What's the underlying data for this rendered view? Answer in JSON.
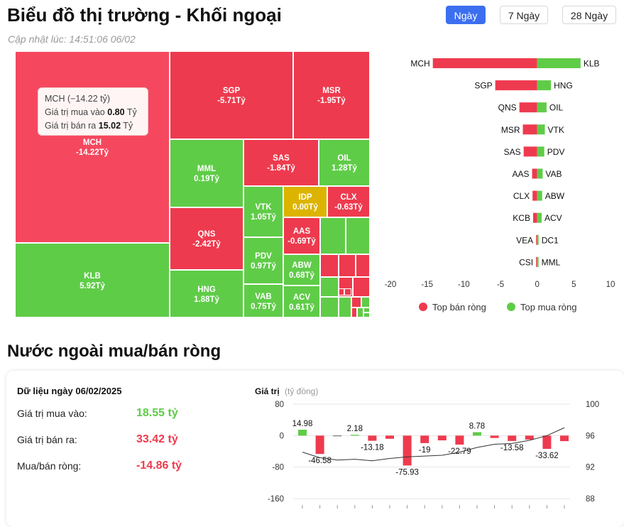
{
  "header": {
    "title": "Biểu đồ thị trường - Khối ngoại",
    "updated": "Cập nhật lúc: 14:51:06 06/02"
  },
  "tabs": [
    {
      "label": "Ngày",
      "active": true
    },
    {
      "label": "7 Ngày",
      "active": false
    },
    {
      "label": "28 Ngày",
      "active": false
    }
  ],
  "colors": {
    "sell": "#ee3a4e",
    "buy": "#5fcc48",
    "neutral": "#dcb400",
    "sell_highlight": "#f5485f",
    "accent": "#3c6ff0"
  },
  "tooltip": {
    "title": "MCH (−14.22 tỷ)",
    "buy_label": "Giá trị mua vào",
    "buy_value": "0.80",
    "sell_label": "Giá trị bán ra",
    "sell_value": "15.02",
    "unit": "Tỷ"
  },
  "chart_data": [
    {
      "type": "heatmap",
      "cells": [
        {
          "ticker": "MCH",
          "value_label": "-14.22Tỷ",
          "value": -14.22
        },
        {
          "ticker": "KLB",
          "value_label": "5.92Tỷ",
          "value": 5.92
        },
        {
          "ticker": "SGP",
          "value_label": "-5.71Tỷ",
          "value": -5.71
        },
        {
          "ticker": "MSR",
          "value_label": "-1.95Tỷ",
          "value": -1.95
        },
        {
          "ticker": "MML",
          "value_label": "0.19Tỷ",
          "value": 0.19
        },
        {
          "ticker": "SAS",
          "value_label": "-1.84Tỷ",
          "value": -1.84
        },
        {
          "ticker": "OIL",
          "value_label": "1.28Tỷ",
          "value": 1.28
        },
        {
          "ticker": "QNS",
          "value_label": "-2.42Tỷ",
          "value": -2.42
        },
        {
          "ticker": "VTK",
          "value_label": "1.05Tỷ",
          "value": 1.05
        },
        {
          "ticker": "IDP",
          "value_label": "0.00Tỷ",
          "value": 0.0
        },
        {
          "ticker": "CLX",
          "value_label": "-0.63Tỷ",
          "value": -0.63
        },
        {
          "ticker": "AAS",
          "value_label": "-0.69Tỷ",
          "value": -0.69
        },
        {
          "ticker": "PDV",
          "value_label": "0.97Tỷ",
          "value": 0.97
        },
        {
          "ticker": "ABW",
          "value_label": "0.68Tỷ",
          "value": 0.68
        },
        {
          "ticker": "HNG",
          "value_label": "1.88Tỷ",
          "value": 1.88
        },
        {
          "ticker": "VAB",
          "value_label": "0.75Tỷ",
          "value": 0.75
        },
        {
          "ticker": "ACV",
          "value_label": "0.61Tỷ",
          "value": 0.61
        }
      ],
      "small_cells": [
        "buy",
        "buy",
        "sell",
        "sell",
        "sell",
        "buy",
        "sell",
        "sell",
        "buy",
        "buy",
        "sell",
        "buy",
        "sell",
        "buy",
        "buy",
        "buy",
        "sell",
        "sell"
      ]
    },
    {
      "type": "bar",
      "orientation": "horizontal",
      "sell_tickers": [
        "MCH",
        "SGP",
        "QNS",
        "MSR",
        "SAS",
        "AAS",
        "CLX",
        "KCB",
        "VEA",
        "CSI"
      ],
      "sell_values": [
        -14.22,
        -5.71,
        -2.42,
        -1.95,
        -1.84,
        -0.69,
        -0.63,
        -0.55,
        -0.12,
        -0.08
      ],
      "buy_tickers": [
        "KLB",
        "HNG",
        "OIL",
        "VTK",
        "PDV",
        "VAB",
        "ABW",
        "ACV",
        "DC1",
        "MML"
      ],
      "buy_values": [
        5.92,
        1.88,
        1.28,
        1.05,
        0.97,
        0.75,
        0.68,
        0.61,
        0.2,
        0.19
      ],
      "xlim": [
        -20,
        10
      ],
      "ticks": [
        -20,
        -15,
        -10,
        -5,
        0,
        5,
        10
      ],
      "legend": [
        {
          "label": "Top bán ròng",
          "color": "#ee3a4e"
        },
        {
          "label": "Top mua ròng",
          "color": "#5fcc48"
        }
      ],
      "legend_position": "bottom"
    },
    {
      "type": "bar",
      "ylabel": "Giá trị",
      "ylabel_unit": "(tỷ đồng)",
      "values": [
        14.98,
        -46.58,
        0,
        2.18,
        -13.18,
        -8,
        -75.93,
        -19,
        -12,
        -22.79,
        8.78,
        -6,
        -13.58,
        -10,
        -33.62,
        -14
      ],
      "data_labels": [
        "14.98",
        "-46.58",
        "",
        "2.18",
        "-13.18",
        "",
        "-75.93",
        "-19",
        "",
        "-22.79",
        "8.78",
        "",
        "-13.58",
        "",
        "-33.62",
        ""
      ],
      "ylim": [
        -160,
        80
      ],
      "yticks": [
        80,
        0,
        -80,
        -160
      ],
      "y2ticks": [
        "100",
        "96",
        "92",
        "88"
      ],
      "y2lim": [
        88,
        100
      ],
      "line": [
        93.9,
        93.2,
        92.9,
        93.0,
        92.8,
        93.1,
        93.3,
        93.4,
        93.5,
        93.9,
        94.5,
        94.9,
        95.0,
        95.4,
        96.0,
        97.0
      ]
    }
  ],
  "summary": {
    "date_label": "Dữ liệu ngày 06/02/2025",
    "section_title": "Nước ngoài mua/bán ròng",
    "rows": [
      {
        "label": "Giá trị mua vào:",
        "value": "18.55 tỷ",
        "kind": "buy"
      },
      {
        "label": "Giá trị bán ra:",
        "value": "33.42 tỷ",
        "kind": "sell"
      },
      {
        "label": "Mua/bán ròng:",
        "value": "-14.86 tỷ",
        "kind": "sell"
      }
    ]
  }
}
